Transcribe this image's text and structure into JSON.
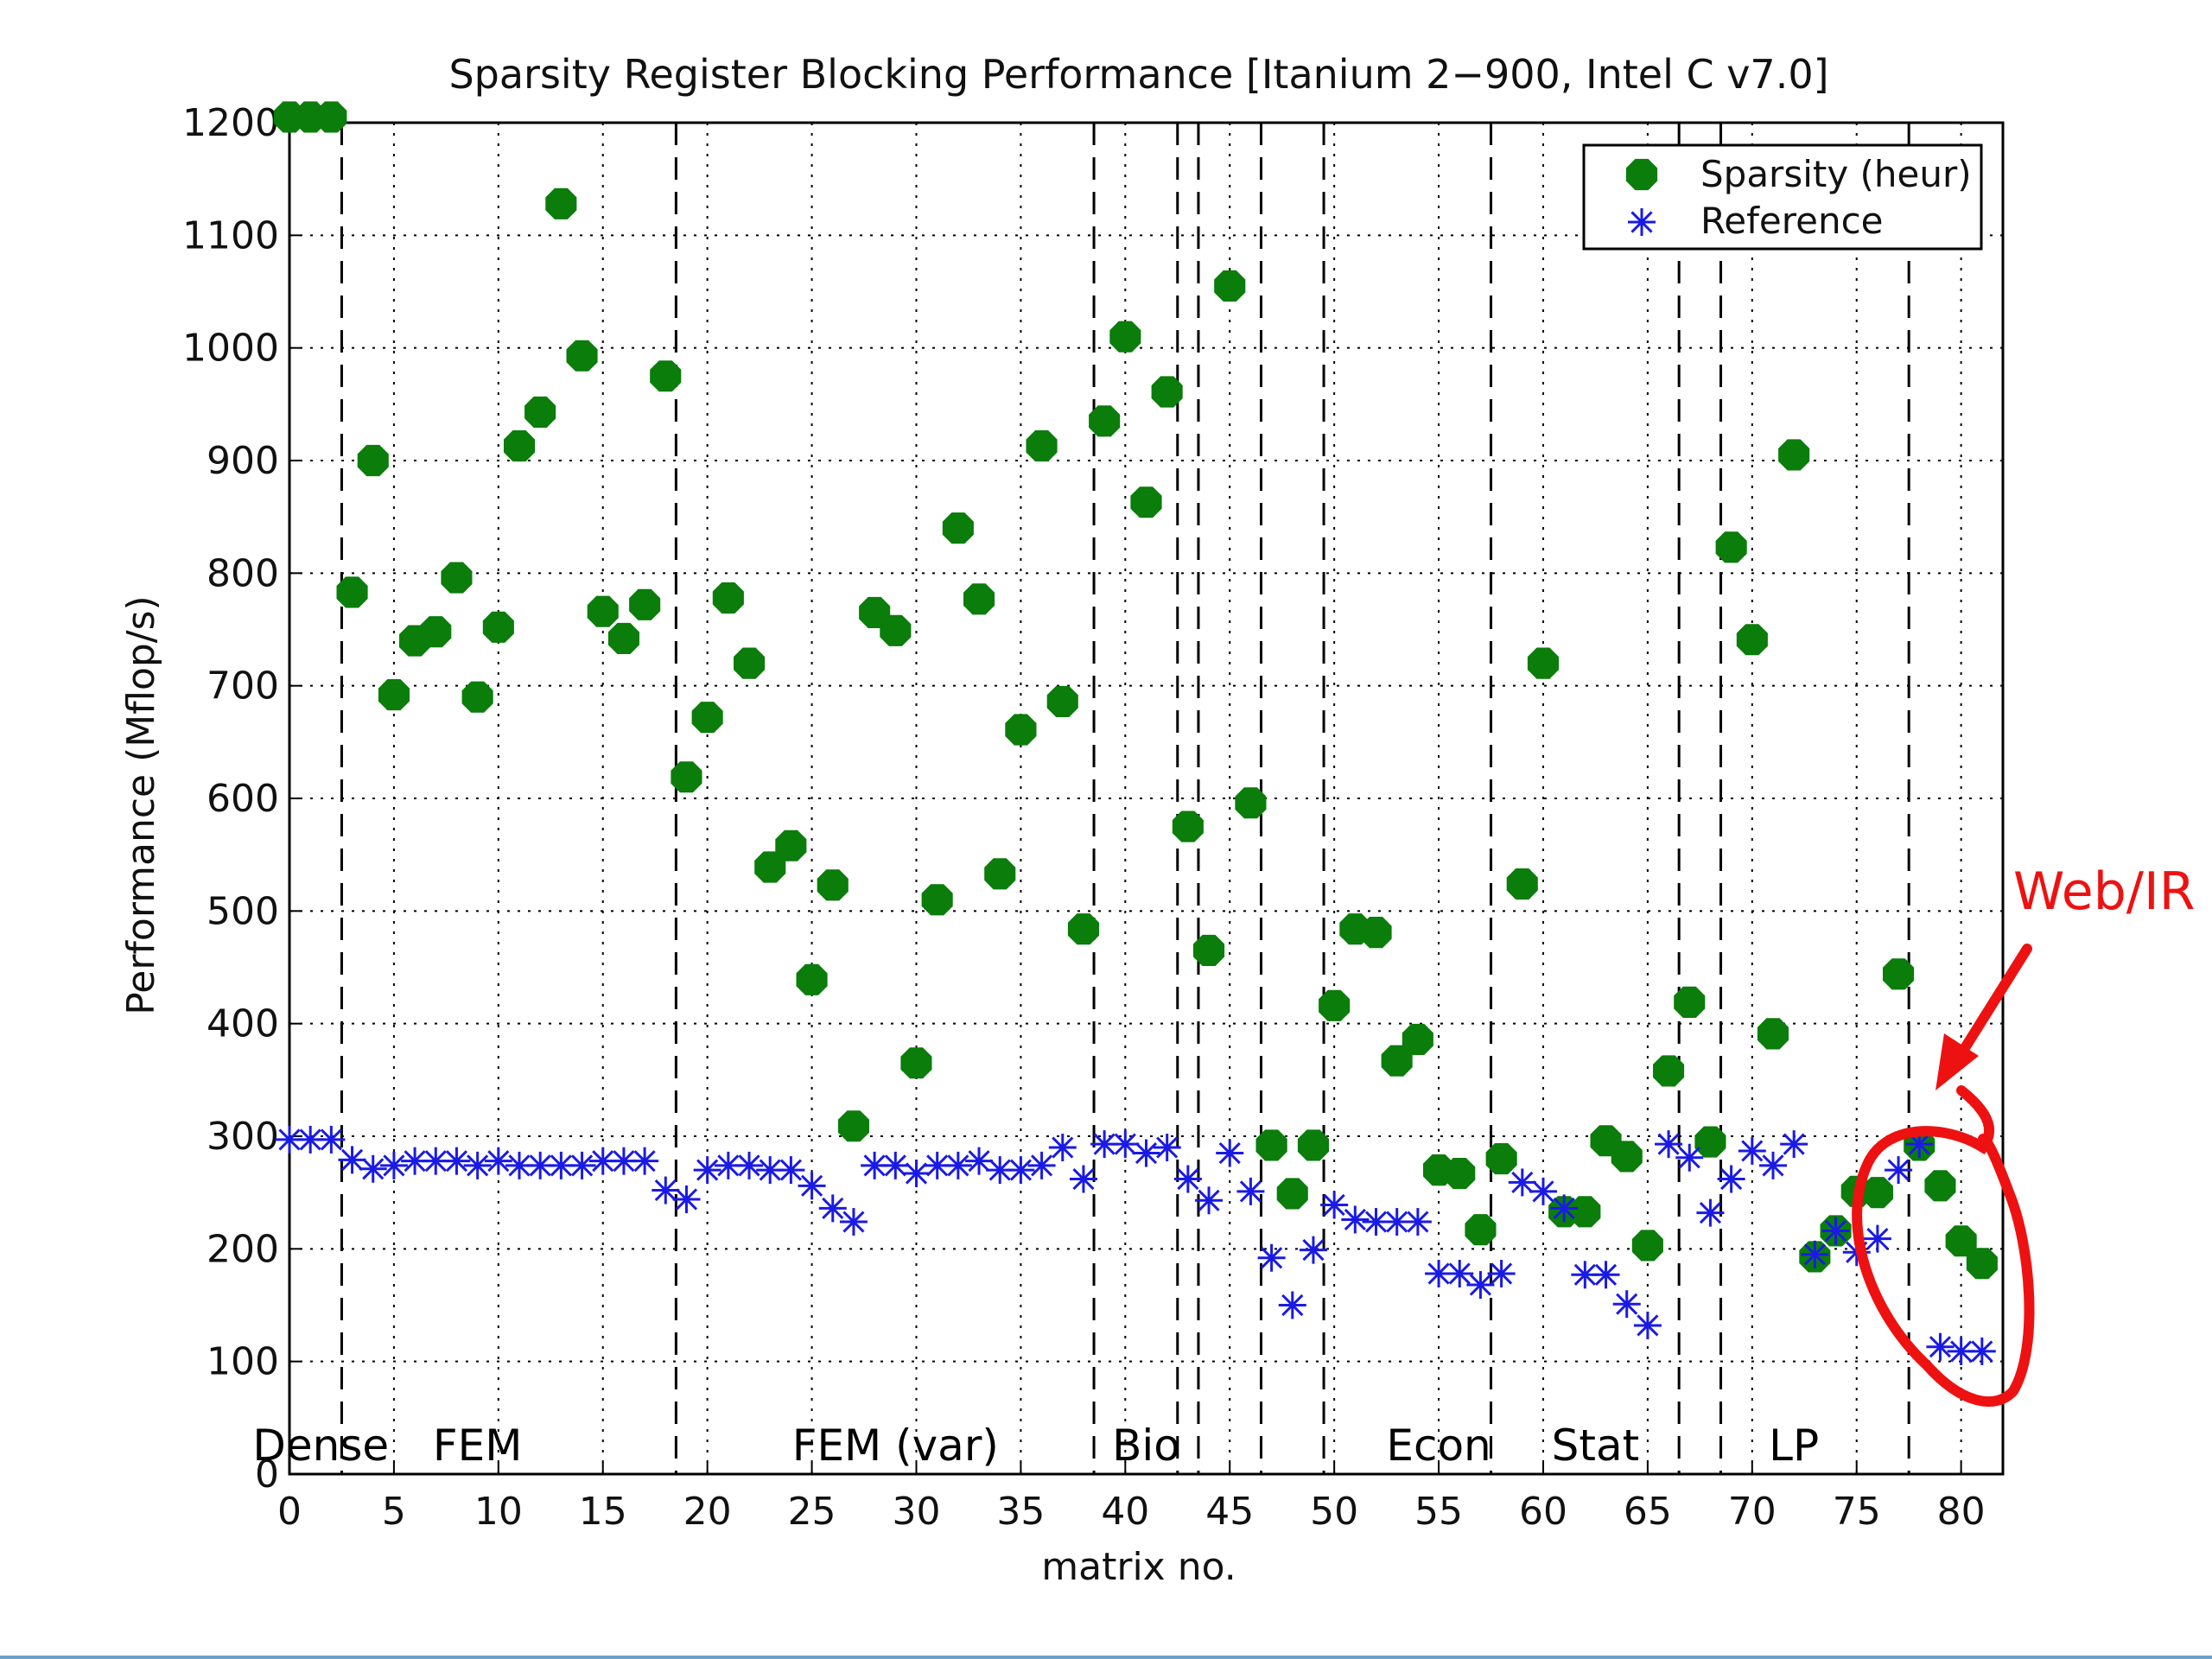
{
  "chart_data": {
    "type": "scatter",
    "title": "Sparsity Register Blocking Performance [Itanium 2−900, Intel C v7.0]",
    "xlabel": "matrix no.",
    "ylabel": "Performance (Mflop/s)",
    "xlim": [
      0,
      82
    ],
    "ylim": [
      0,
      1200
    ],
    "xticks": [
      "0",
      "5",
      "10",
      "15",
      "20",
      "25",
      "30",
      "35",
      "40",
      "45",
      "50",
      "55",
      "60",
      "65",
      "70",
      "75",
      "80"
    ],
    "yticks": [
      "0",
      "100",
      "200",
      "300",
      "400",
      "500",
      "600",
      "700",
      "800",
      "900",
      "1000",
      "1100",
      "1200"
    ],
    "grid": true,
    "legend_position": "top-right",
    "series": [
      {
        "name": "Sparsity (heur)",
        "marker": "circle",
        "color": "#0a7d0a",
        "x": [
          0,
          1,
          2,
          3,
          4,
          5,
          6,
          7,
          8,
          9,
          10,
          11,
          12,
          13,
          14,
          15,
          16,
          17,
          18,
          19,
          20,
          21,
          22,
          23,
          24,
          25,
          26,
          27,
          28,
          29,
          30,
          31,
          32,
          33,
          34,
          35,
          36,
          37,
          38,
          39,
          40,
          41,
          42,
          43,
          44,
          45,
          46,
          47,
          48,
          49,
          50,
          51,
          52,
          53,
          54,
          55,
          56,
          57,
          58,
          59,
          60,
          61,
          62,
          63,
          64,
          65,
          66,
          67,
          68,
          69,
          70,
          71,
          72,
          73,
          74,
          75,
          76,
          77,
          78,
          79,
          80,
          81
        ],
        "y": [
          1205,
          1205,
          1205,
          783,
          900,
          692,
          740,
          748,
          796,
          690,
          752,
          913,
          943,
          1128,
          993,
          766,
          742,
          772,
          975,
          619,
          672,
          778,
          720,
          539,
          558,
          439,
          523,
          309,
          765,
          749,
          365,
          510,
          840,
          777,
          533,
          661,
          913,
          686,
          484,
          935,
          1010,
          863,
          961,
          575,
          465,
          1055,
          596,
          292,
          249,
          292,
          416,
          484,
          481,
          367,
          386,
          270,
          267,
          217,
          280,
          524,
          720,
          233,
          233,
          296,
          282,
          203,
          358,
          419,
          295,
          823,
          741,
          391,
          905,
          193,
          216,
          251,
          250,
          444,
          292,
          256,
          207,
          187
        ]
      },
      {
        "name": "Reference",
        "marker": "asterisk",
        "color": "#1a1ae6",
        "x": [
          0,
          1,
          2,
          3,
          4,
          5,
          6,
          7,
          8,
          9,
          10,
          11,
          12,
          13,
          14,
          15,
          16,
          17,
          18,
          19,
          20,
          21,
          22,
          23,
          24,
          25,
          26,
          27,
          28,
          29,
          30,
          31,
          32,
          33,
          34,
          35,
          36,
          37,
          38,
          39,
          40,
          41,
          42,
          43,
          44,
          45,
          46,
          47,
          48,
          49,
          50,
          51,
          52,
          53,
          54,
          55,
          56,
          57,
          58,
          59,
          60,
          61,
          62,
          63,
          64,
          65,
          66,
          67,
          68,
          69,
          70,
          71,
          72,
          73,
          74,
          75,
          76,
          77,
          78,
          79,
          80,
          81
        ],
        "y": [
          297,
          297,
          297,
          279,
          271,
          274,
          278,
          278,
          278,
          274,
          278,
          274,
          274,
          274,
          274,
          278,
          278,
          278,
          252,
          244,
          270,
          274,
          274,
          270,
          270,
          256,
          236,
          224,
          274,
          274,
          267,
          274,
          274,
          278,
          270,
          270,
          274,
          290,
          262,
          293,
          293,
          285,
          290,
          262,
          243,
          285,
          251,
          192,
          150,
          199,
          239,
          226,
          224,
          224,
          224,
          178,
          178,
          168,
          178,
          259,
          251,
          236,
          177,
          177,
          151,
          132,
          293,
          281,
          232,
          262,
          287,
          274,
          293,
          195,
          216,
          197,
          209,
          270,
          293,
          113,
          109,
          109
        ]
      }
    ],
    "region_labels": [
      "Dense",
      "FEM",
      "FEM (var)",
      "Bio",
      "Econ",
      "Stat",
      "LP"
    ],
    "region_label_x": [
      1.5,
      9,
      29,
      41,
      55,
      62.5,
      72
    ],
    "region_boundaries": [
      2.5,
      18.5,
      38.5,
      42.5,
      43.5,
      46.5,
      49.5,
      57.5,
      66.5,
      68.5,
      77.5
    ],
    "annotation": {
      "text": "Web/IR",
      "color": "#ee1111",
      "target_x": 79.5,
      "target_y": 205
    }
  }
}
